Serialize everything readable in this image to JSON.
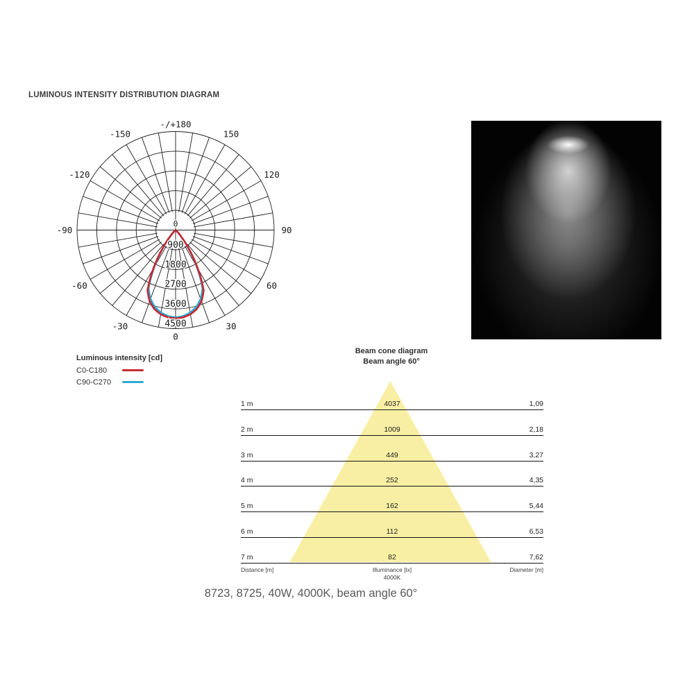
{
  "page": {
    "title": "LUMINOUS INTENSITY DISTRIBUTION DIAGRAM",
    "caption": "8723, 8725, 40W, 4000K, beam angle 60°"
  },
  "colors": {
    "curve_red": "#c62a33",
    "curve_blue": "#2ba9d6",
    "cone_fill": "#f9efa4",
    "grid": "#1c1c1c"
  },
  "legend": {
    "title": "Luminous intensity [cd]",
    "series": [
      {
        "label": "C0-C180",
        "color": "#c62a33"
      },
      {
        "label": "C90-C270",
        "color": "#2ba9d6"
      }
    ]
  },
  "beam_cone": {
    "title": "Beam cone diagram",
    "subtitle": "Beam angle 60°",
    "rows": [
      {
        "distance": "1 m",
        "illuminance": "4037",
        "diameter": "1,09"
      },
      {
        "distance": "2 m",
        "illuminance": "1009",
        "diameter": "2,18"
      },
      {
        "distance": "3 m",
        "illuminance": "449",
        "diameter": "3,27"
      },
      {
        "distance": "4 m",
        "illuminance": "252",
        "diameter": "4,35"
      },
      {
        "distance": "5 m",
        "illuminance": "162",
        "diameter": "5,44"
      },
      {
        "distance": "6 m",
        "illuminance": "112",
        "diameter": "6,53"
      },
      {
        "distance": "7 m",
        "illuminance": "82",
        "diameter": "7,62"
      }
    ],
    "footer": {
      "left": "Distance [m]",
      "center": "Illuminance [lx]",
      "center2": "4000K",
      "right": "Diameter [m]"
    }
  },
  "chart_data": [
    {
      "type": "polar_intensity",
      "title": "Luminous intensity [cd]",
      "units": "cd",
      "radial_ticks": [
        900,
        1800,
        2700,
        3600,
        4500
      ],
      "radial_tick_labels": [
        "900",
        "1800",
        "2700",
        "3600",
        "4500"
      ],
      "center_label": "0",
      "max_cd": 4500,
      "spoke_step_deg": 10,
      "angle_labels": [
        {
          "angle": 0,
          "label": "0"
        },
        {
          "angle": 30,
          "label": "30"
        },
        {
          "angle": 60,
          "label": "60"
        },
        {
          "angle": 90,
          "label": "90"
        },
        {
          "angle": 120,
          "label": "120"
        },
        {
          "angle": 150,
          "label": "150"
        },
        {
          "angle": -30,
          "label": "-30"
        },
        {
          "angle": -60,
          "label": "-60"
        },
        {
          "angle": -90,
          "label": "-90"
        },
        {
          "angle": -120,
          "label": "-120"
        },
        {
          "angle": -150,
          "label": "-150"
        },
        {
          "angle": 180,
          "label": "-/+180"
        }
      ],
      "series": [
        {
          "name": "C90-C270",
          "color": "#2ba9d6",
          "profile_deg_cd": [
            [
              0,
              3990
            ],
            [
              5,
              3945
            ],
            [
              10,
              3830
            ],
            [
              15,
              3640
            ],
            [
              20,
              3345
            ],
            [
              25,
              2915
            ],
            [
              30,
              1940
            ],
            [
              35,
              1010
            ],
            [
              40,
              390
            ],
            [
              45,
              130
            ],
            [
              50,
              36
            ],
            [
              55,
              8
            ],
            [
              60,
              0
            ]
          ]
        },
        {
          "name": "C0-C180",
          "color": "#c62a33",
          "profile_deg_cd": [
            [
              0,
              4037
            ],
            [
              5,
              4000
            ],
            [
              10,
              3905
            ],
            [
              15,
              3735
            ],
            [
              20,
              3460
            ],
            [
              25,
              3030
            ],
            [
              30,
              2018
            ],
            [
              35,
              1070
            ],
            [
              40,
              420
            ],
            [
              45,
              145
            ],
            [
              50,
              42
            ],
            [
              55,
              10
            ],
            [
              60,
              0
            ]
          ]
        }
      ]
    },
    {
      "type": "table",
      "title": "Beam cone diagram",
      "subtitle": "Beam angle 60°",
      "beam_angle_deg": 60,
      "columns": [
        "Distance [m]",
        "Illuminance [lx] 4000K",
        "Diameter [m]"
      ],
      "rows": [
        [
          "1 m",
          4037,
          "1,09"
        ],
        [
          "2 m",
          1009,
          "2,18"
        ],
        [
          "3 m",
          449,
          "3,27"
        ],
        [
          "4 m",
          252,
          "4,35"
        ],
        [
          "5 m",
          162,
          "5,44"
        ],
        [
          "6 m",
          112,
          "6,53"
        ],
        [
          "7 m",
          82,
          "7,62"
        ]
      ]
    }
  ]
}
